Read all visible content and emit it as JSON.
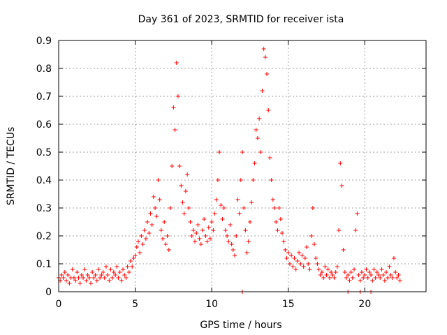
{
  "chart_data": {
    "type": "scatter",
    "title": "Day 361 of 2023, SRMTID for receiver ista",
    "xlabel": "GPS time / hours",
    "ylabel": "SRMTID / TECUs",
    "xlim": [
      0,
      24
    ],
    "ylim": [
      0,
      0.9
    ],
    "x_ticks": [
      "0",
      "5",
      "10",
      "15",
      "20"
    ],
    "y_ticks": [
      "0",
      "0.1",
      "0.2",
      "0.3",
      "0.4",
      "0.5",
      "0.6",
      "0.7",
      "0.8",
      "0.9"
    ],
    "grid": true,
    "marker": "+",
    "series_color": "#ff0000",
    "points": [
      [
        0.0,
        0.05
      ],
      [
        0.1,
        0.04
      ],
      [
        0.2,
        0.06
      ],
      [
        0.3,
        0.05
      ],
      [
        0.4,
        0.07
      ],
      [
        0.5,
        0.04
      ],
      [
        0.6,
        0.06
      ],
      [
        0.7,
        0.03
      ],
      [
        0.8,
        0.05
      ],
      [
        0.9,
        0.08
      ],
      [
        1.0,
        0.05
      ],
      [
        1.1,
        0.04
      ],
      [
        1.2,
        0.07
      ],
      [
        1.3,
        0.05
      ],
      [
        1.4,
        0.03
      ],
      [
        1.5,
        0.06
      ],
      [
        1.6,
        0.05
      ],
      [
        1.7,
        0.08
      ],
      [
        1.8,
        0.04
      ],
      [
        1.9,
        0.06
      ],
      [
        2.0,
        0.05
      ],
      [
        2.1,
        0.03
      ],
      [
        2.2,
        0.07
      ],
      [
        2.3,
        0.05
      ],
      [
        2.4,
        0.06
      ],
      [
        2.5,
        0.04
      ],
      [
        2.6,
        0.08
      ],
      [
        2.7,
        0.05
      ],
      [
        2.8,
        0.06
      ],
      [
        2.9,
        0.07
      ],
      [
        3.0,
        0.05
      ],
      [
        3.1,
        0.09
      ],
      [
        3.2,
        0.06
      ],
      [
        3.3,
        0.04
      ],
      [
        3.4,
        0.08
      ],
      [
        3.5,
        0.05
      ],
      [
        3.6,
        0.07
      ],
      [
        3.7,
        0.06
      ],
      [
        3.8,
        0.09
      ],
      [
        3.9,
        0.05
      ],
      [
        4.0,
        0.07
      ],
      [
        4.1,
        0.04
      ],
      [
        4.2,
        0.08
      ],
      [
        4.3,
        0.06
      ],
      [
        4.4,
        0.05
      ],
      [
        4.5,
        0.09
      ],
      [
        4.6,
        0.07
      ],
      [
        4.7,
        0.11
      ],
      [
        4.8,
        0.09
      ],
      [
        4.9,
        0.12
      ],
      [
        5.0,
        0.13
      ],
      [
        5.1,
        0.16
      ],
      [
        5.2,
        0.18
      ],
      [
        5.3,
        0.14
      ],
      [
        5.4,
        0.2
      ],
      [
        5.5,
        0.17
      ],
      [
        5.6,
        0.22
      ],
      [
        5.7,
        0.19
      ],
      [
        5.8,
        0.25
      ],
      [
        5.9,
        0.21
      ],
      [
        6.0,
        0.28
      ],
      [
        6.1,
        0.24
      ],
      [
        6.2,
        0.34
      ],
      [
        6.3,
        0.3
      ],
      [
        6.4,
        0.27
      ],
      [
        6.5,
        0.4
      ],
      [
        6.6,
        0.33
      ],
      [
        6.7,
        0.22
      ],
      [
        6.8,
        0.19
      ],
      [
        6.9,
        0.25
      ],
      [
        7.0,
        0.17
      ],
      [
        7.1,
        0.2
      ],
      [
        7.2,
        0.15
      ],
      [
        7.3,
        0.3
      ],
      [
        7.4,
        0.45
      ],
      [
        7.5,
        0.66
      ],
      [
        7.6,
        0.58
      ],
      [
        7.7,
        0.82
      ],
      [
        7.8,
        0.7
      ],
      [
        7.9,
        0.45
      ],
      [
        8.0,
        0.38
      ],
      [
        8.1,
        0.32
      ],
      [
        8.2,
        0.28
      ],
      [
        8.3,
        0.36
      ],
      [
        8.4,
        0.42
      ],
      [
        8.5,
        0.3
      ],
      [
        8.6,
        0.25
      ],
      [
        8.7,
        0.2
      ],
      [
        8.8,
        0.22
      ],
      [
        8.9,
        0.18
      ],
      [
        9.0,
        0.21
      ],
      [
        9.1,
        0.24
      ],
      [
        9.2,
        0.19
      ],
      [
        9.3,
        0.17
      ],
      [
        9.4,
        0.22
      ],
      [
        9.5,
        0.26
      ],
      [
        9.6,
        0.2
      ],
      [
        9.7,
        0.18
      ],
      [
        9.8,
        0.23
      ],
      [
        9.9,
        0.19
      ],
      [
        10.0,
        0.25
      ],
      [
        10.1,
        0.22
      ],
      [
        10.2,
        0.28
      ],
      [
        10.3,
        0.33
      ],
      [
        10.4,
        0.4
      ],
      [
        10.5,
        0.5
      ],
      [
        10.6,
        0.31
      ],
      [
        10.7,
        0.26
      ],
      [
        10.8,
        0.3
      ],
      [
        10.9,
        0.22
      ],
      [
        11.0,
        0.2
      ],
      [
        11.1,
        0.18
      ],
      [
        11.2,
        0.24
      ],
      [
        11.3,
        0.17
      ],
      [
        11.4,
        0.15
      ],
      [
        11.5,
        0.13
      ],
      [
        11.6,
        0.2
      ],
      [
        11.7,
        0.33
      ],
      [
        11.8,
        0.28
      ],
      [
        11.9,
        0.4
      ],
      [
        12.0,
        0.5
      ],
      [
        12.1,
        0.3
      ],
      [
        12.2,
        0.22
      ],
      [
        12.3,
        0.14
      ],
      [
        12.4,
        0.18
      ],
      [
        12.5,
        0.25
      ],
      [
        12.6,
        0.32
      ],
      [
        12.7,
        0.4
      ],
      [
        12.8,
        0.46
      ],
      [
        12.9,
        0.58
      ],
      [
        13.0,
        0.55
      ],
      [
        13.1,
        0.62
      ],
      [
        13.2,
        0.5
      ],
      [
        13.3,
        0.72
      ],
      [
        13.4,
        0.87
      ],
      [
        13.5,
        0.84
      ],
      [
        13.6,
        0.78
      ],
      [
        13.7,
        0.65
      ],
      [
        13.8,
        0.48
      ],
      [
        13.9,
        0.4
      ],
      [
        14.0,
        0.33
      ],
      [
        14.1,
        0.3
      ],
      [
        14.2,
        0.25
      ],
      [
        14.3,
        0.22
      ],
      [
        14.4,
        0.3
      ],
      [
        14.5,
        0.26
      ],
      [
        14.6,
        0.21
      ],
      [
        14.7,
        0.18
      ],
      [
        14.8,
        0.15
      ],
      [
        14.9,
        0.12
      ],
      [
        15.0,
        0.14
      ],
      [
        15.1,
        0.1
      ],
      [
        15.2,
        0.13
      ],
      [
        15.3,
        0.09
      ],
      [
        15.4,
        0.12
      ],
      [
        15.5,
        0.08
      ],
      [
        15.6,
        0.11
      ],
      [
        15.7,
        0.14
      ],
      [
        15.8,
        0.1
      ],
      [
        15.9,
        0.13
      ],
      [
        16.0,
        0.09
      ],
      [
        16.1,
        0.12
      ],
      [
        16.2,
        0.16
      ],
      [
        16.3,
        0.1
      ],
      [
        16.4,
        0.08
      ],
      [
        16.5,
        0.2
      ],
      [
        16.6,
        0.3
      ],
      [
        16.7,
        0.17
      ],
      [
        16.8,
        0.12
      ],
      [
        16.9,
        0.1
      ],
      [
        17.0,
        0.08
      ],
      [
        17.1,
        0.06
      ],
      [
        17.2,
        0.07
      ],
      [
        17.3,
        0.05
      ],
      [
        17.4,
        0.09
      ],
      [
        17.5,
        0.06
      ],
      [
        17.6,
        0.08
      ],
      [
        17.7,
        0.05
      ],
      [
        17.8,
        0.07
      ],
      [
        17.9,
        0.06
      ],
      [
        18.0,
        0.05
      ],
      [
        18.1,
        0.07
      ],
      [
        18.2,
        0.09
      ],
      [
        18.3,
        0.22
      ],
      [
        18.4,
        0.46
      ],
      [
        18.5,
        0.38
      ],
      [
        18.6,
        0.15
      ],
      [
        18.7,
        0.07
      ],
      [
        18.8,
        0.05
      ],
      [
        18.9,
        0.06
      ],
      [
        19.0,
        0.04
      ],
      [
        19.1,
        0.07
      ],
      [
        19.2,
        0.05
      ],
      [
        19.3,
        0.08
      ],
      [
        19.4,
        0.22
      ],
      [
        19.5,
        0.28
      ],
      [
        19.6,
        0.06
      ],
      [
        19.7,
        0.04
      ],
      [
        19.8,
        0.07
      ],
      [
        19.9,
        0.05
      ],
      [
        20.0,
        0.06
      ],
      [
        20.1,
        0.08
      ],
      [
        20.2,
        0.05
      ],
      [
        20.3,
        0.07
      ],
      [
        20.4,
        0.06
      ],
      [
        20.5,
        0.04
      ],
      [
        20.6,
        0.08
      ],
      [
        20.7,
        0.05
      ],
      [
        20.8,
        0.07
      ],
      [
        20.9,
        0.06
      ],
      [
        21.0,
        0.05
      ],
      [
        21.1,
        0.08
      ],
      [
        21.2,
        0.06
      ],
      [
        21.3,
        0.04
      ],
      [
        21.4,
        0.07
      ],
      [
        21.5,
        0.05
      ],
      [
        21.6,
        0.09
      ],
      [
        21.7,
        0.06
      ],
      [
        21.8,
        0.05
      ],
      [
        21.9,
        0.12
      ],
      [
        22.0,
        0.07
      ],
      [
        22.1,
        0.05
      ],
      [
        22.2,
        0.06
      ],
      [
        22.3,
        0.04
      ],
      [
        12.0,
        0.0
      ],
      [
        18.9,
        0.0
      ],
      [
        19.7,
        0.0
      ],
      [
        20.4,
        0.0
      ]
    ]
  }
}
